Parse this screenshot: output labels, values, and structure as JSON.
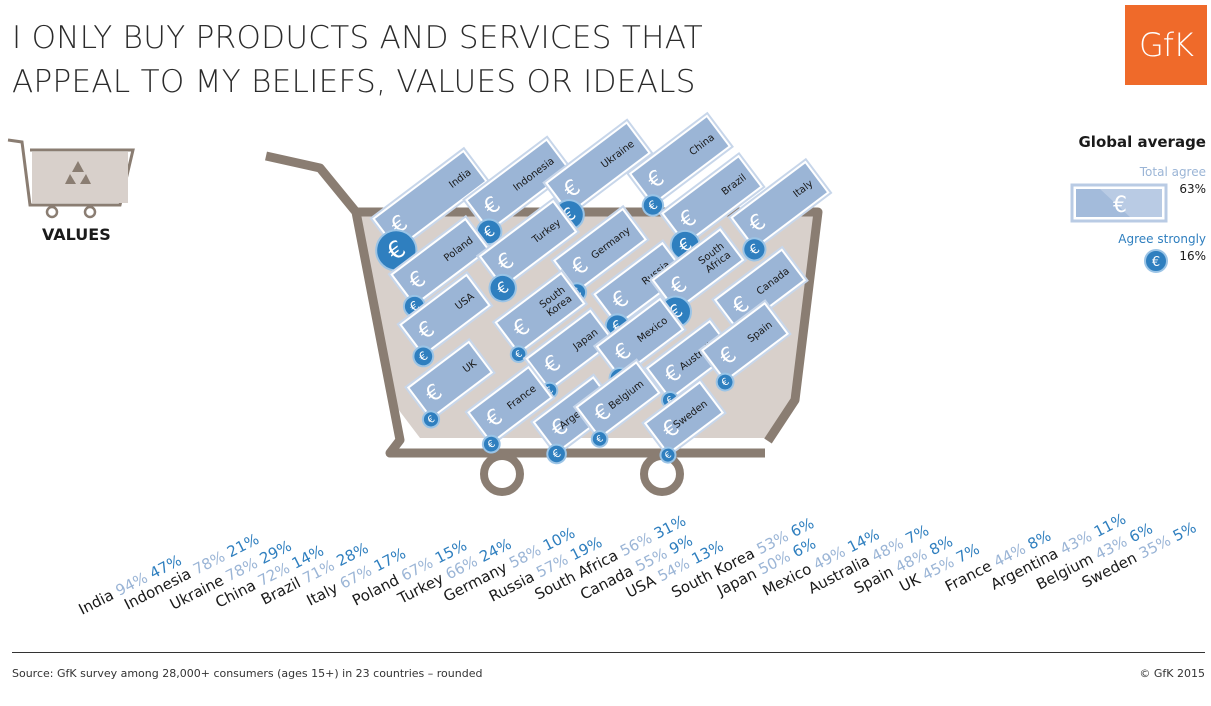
{
  "title_line1": "I ONLY BUY PRODUCTS AND SERVICES THAT",
  "title_line2": "APPEAL TO MY BELIEFS, VALUES OR IDEALS",
  "logo": "GfK",
  "values_label": "VALUES",
  "legend": {
    "title": "Global average",
    "total_agree_label": "Total agree",
    "total_agree_value": "63%",
    "agree_strongly_label": "Agree strongly",
    "agree_strongly_value": "16%",
    "euro_symbol": "€"
  },
  "source": "Source: GfK survey among 28,000+ consumers (ages 15+) in 23 countries – rounded",
  "copyright": "© GfK 2015",
  "colors": {
    "total_agree": "#9bb5d6",
    "agree_strongly": "#2f7fbf",
    "cart": "#8a7d72",
    "cart_fill": "#d8d0cb",
    "logo": "#ef6a2a"
  },
  "chart_data": {
    "type": "bar",
    "categories": [
      "India",
      "Indonesia",
      "Ukraine",
      "China",
      "Brazil",
      "Italy",
      "Poland",
      "Turkey",
      "Germany",
      "Russia",
      "South Africa",
      "Canada",
      "USA",
      "South Korea",
      "Japan",
      "Mexico",
      "Australia",
      "Spain",
      "UK",
      "France",
      "Argentina",
      "Belgium",
      "Sweden"
    ],
    "series": [
      {
        "name": "Total agree",
        "values": [
          94,
          78,
          78,
          72,
          71,
          67,
          67,
          66,
          58,
          57,
          56,
          55,
          54,
          53,
          50,
          49,
          48,
          48,
          45,
          44,
          43,
          43,
          35
        ]
      },
      {
        "name": "Agree strongly",
        "values": [
          47,
          21,
          29,
          14,
          28,
          17,
          15,
          24,
          10,
          19,
          31,
          9,
          13,
          6,
          6,
          14,
          7,
          8,
          7,
          8,
          11,
          6,
          5
        ]
      }
    ],
    "cart_labels": [
      [
        "India"
      ],
      [
        "Indonesia"
      ],
      [
        "Ukraine"
      ],
      [
        "China"
      ],
      [
        "Brazil"
      ],
      [
        "Italy"
      ],
      [
        "Poland"
      ],
      [
        "Turkey"
      ],
      [
        "Germany"
      ],
      [
        "Russia"
      ],
      [
        "South",
        "Africa"
      ],
      [
        "Canada"
      ],
      [
        "USA"
      ],
      [
        "South",
        "Korea"
      ],
      [
        "Japan"
      ],
      [
        "Mexico"
      ],
      [
        "Australia"
      ],
      [
        "Spain"
      ],
      [
        "UK"
      ],
      [
        "France"
      ],
      [
        "Argentina"
      ],
      [
        "Belgium"
      ],
      [
        "Sweden"
      ]
    ]
  }
}
